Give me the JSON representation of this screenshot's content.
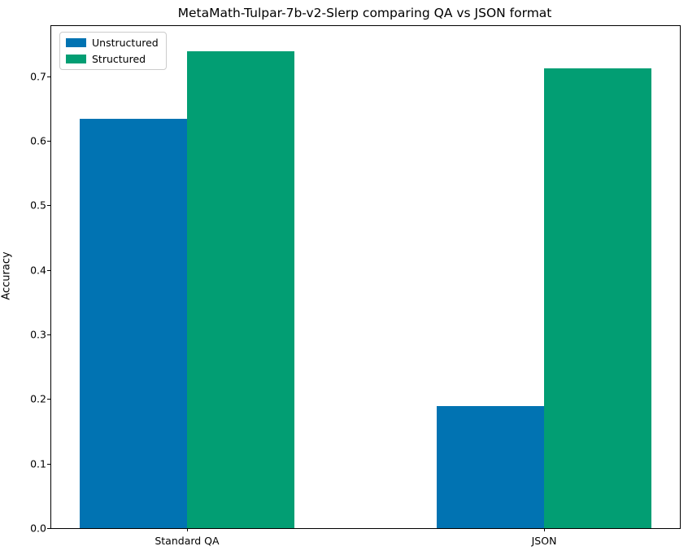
{
  "title": "MetaMath-Tulpar-7b-v2-Slerp comparing QA vs JSON format",
  "chart_data": {
    "type": "bar",
    "categories": [
      "Standard QA",
      "JSON"
    ],
    "series": [
      {
        "name": "Unstructured",
        "color": "#0173b2",
        "values": [
          0.634,
          0.189
        ]
      },
      {
        "name": "Structured",
        "color": "#029e73",
        "values": [
          0.739,
          0.712
        ]
      }
    ],
    "title": "MetaMath-Tulpar-7b-v2-Slerp comparing QA vs JSON format",
    "xlabel": "",
    "ylabel": "Accuracy",
    "ylim": [
      0,
      0.778
    ],
    "yticks": [
      0.0,
      0.1,
      0.2,
      0.3,
      0.4,
      0.5,
      0.6,
      0.7
    ],
    "ytick_label_format": "one_decimal",
    "grid": false,
    "legend_position": "upper-left",
    "group_center_fractions": [
      0.216,
      0.784
    ],
    "bar_width_fraction": 0.1705
  }
}
